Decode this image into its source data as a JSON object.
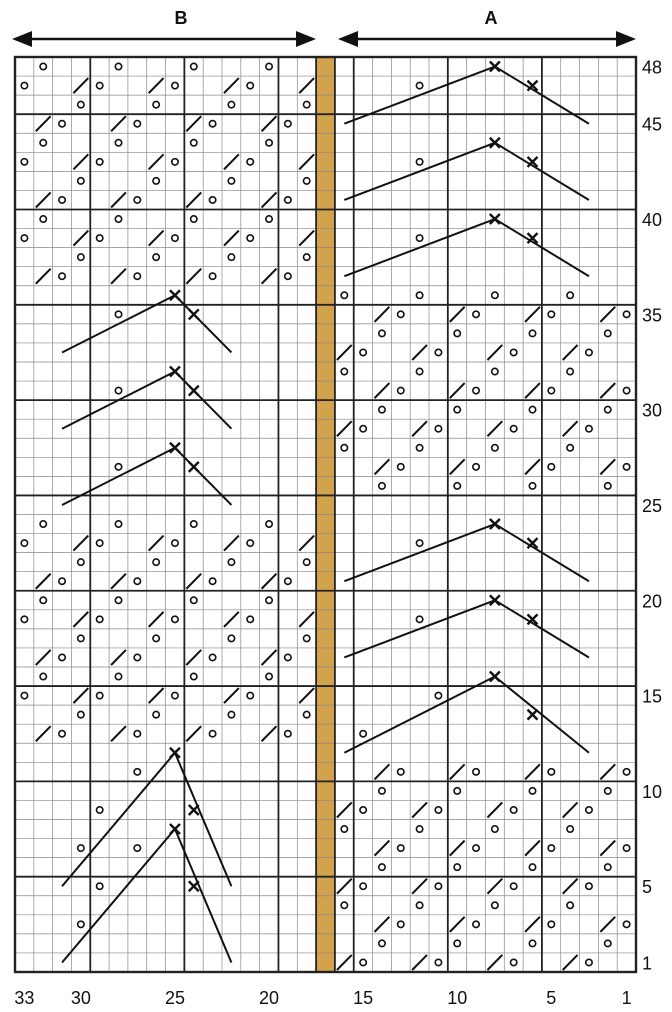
{
  "header": {
    "section_b_label": "B",
    "section_a_label": "A"
  },
  "chart_data": {
    "type": "table",
    "columns": 33,
    "rows": 48,
    "column_numbering": "right-to-left",
    "row_numbering": "bottom-to-top",
    "row_labels": [
      "1",
      "5",
      "10",
      "15",
      "20",
      "25",
      "30",
      "35",
      "40",
      "45",
      "48"
    ],
    "column_labels": [
      "33",
      "30",
      "25",
      "20",
      "15",
      "10",
      "5",
      "1"
    ],
    "sections": [
      {
        "name": "B",
        "span": "columns 33-18"
      },
      {
        "name": "A",
        "span": "columns 16-1"
      }
    ],
    "highlighted_column": 17,
    "colors": {
      "grid_line": "#888888",
      "major_line": "#222222",
      "highlight_column": "#D2A24C",
      "ink": "#111111"
    },
    "symbols": {
      "yarn_over": "circle",
      "right_decrease": "slash",
      "left_decrease": "backslash",
      "double_decrease": "cross"
    }
  }
}
